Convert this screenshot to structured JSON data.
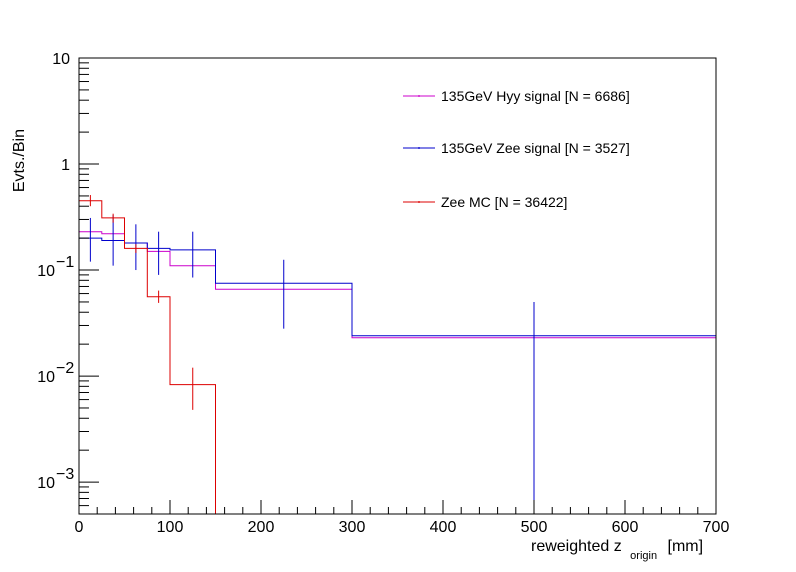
{
  "chart_data": {
    "type": "histogram",
    "xlabel": "reweighted z",
    "xlabel_sub": "origin",
    "xlabel_unit": "[mm]",
    "ylabel": "Evts./Bin",
    "xlim": [
      0,
      700
    ],
    "ylim": [
      0.0005,
      10
    ],
    "yscale": "log",
    "x_major_ticks": [
      0,
      100,
      200,
      300,
      400,
      500,
      600,
      700
    ],
    "x_tick_labels": [
      "0",
      "100",
      "200",
      "300",
      "400",
      "500",
      "600",
      "700"
    ],
    "y_tick_labels": [
      {
        "base": "10",
        "exp": "−3",
        "value": 0.001
      },
      {
        "base": "10",
        "exp": "−2",
        "value": 0.01
      },
      {
        "base": "10",
        "exp": "−1",
        "value": 0.1
      },
      {
        "base": "1",
        "exp": "",
        "value": 1
      },
      {
        "base": "10",
        "exp": "",
        "value": 10
      }
    ],
    "legend_position": "top-right",
    "bin_edges": [
      0,
      25,
      50,
      75,
      100,
      150,
      300,
      700
    ],
    "series": [
      {
        "name": "135GeV Hyy signal [N = 6686]",
        "color": "#cc00cc",
        "values": [
          0.23,
          0.22,
          0.18,
          0.15,
          0.11,
          0.066,
          0.023
        ],
        "errors": []
      },
      {
        "name": "135GeV Zee signal [N = 3527]",
        "color": "#0000cc",
        "values": [
          0.2,
          0.19,
          0.18,
          0.16,
          0.155,
          0.075,
          0.024
        ],
        "errors": [
          [
            0.12,
            0.31
          ],
          [
            0.11,
            0.33
          ],
          [
            0.1,
            0.27
          ],
          [
            0.09,
            0.23
          ],
          [
            0.085,
            0.23
          ],
          [
            0.028,
            0.125
          ],
          [
            0.0005,
            0.05
          ]
        ]
      },
      {
        "name": "Zee MC [N = 36422]",
        "color": "#dd0000",
        "values": [
          0.45,
          0.31,
          0.16,
          0.056,
          0.0083,
          0.0005,
          0.0005
        ],
        "errors": [
          [
            0.4,
            0.51
          ],
          [
            0.28,
            0.34
          ],
          [
            0.145,
            0.175
          ],
          [
            0.049,
            0.064
          ],
          [
            0.0048,
            0.012
          ],
          [],
          []
        ]
      }
    ]
  }
}
